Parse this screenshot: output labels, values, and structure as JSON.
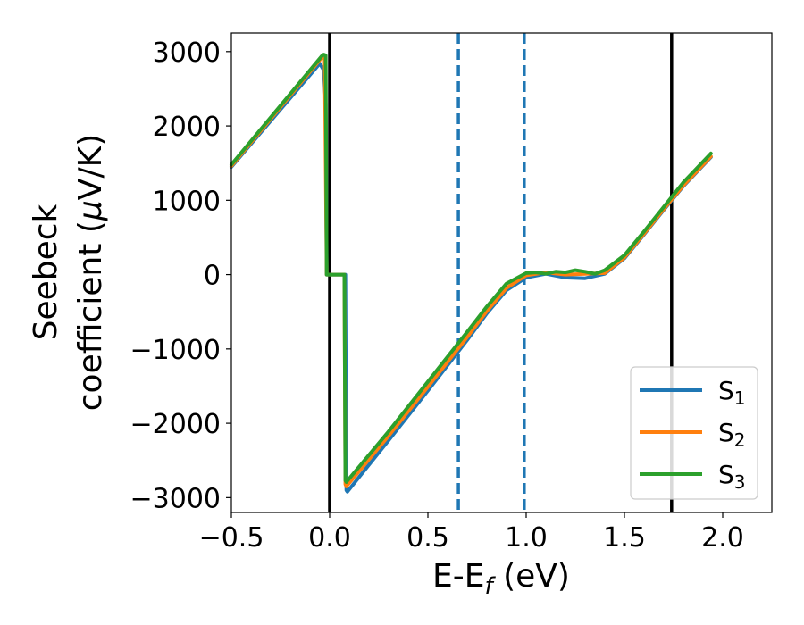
{
  "chart_data": {
    "type": "line",
    "xlabel": "E-E",
    "xlabel_sub": "f",
    "xlabel_unit": " (eV)",
    "ylabel_line1": "Seebeck",
    "ylabel_line2": "coefficient  (",
    "ylabel_mu": "μ",
    "ylabel_unit": "V/K)",
    "xlim": [
      -0.5,
      2.25
    ],
    "ylim": [
      -3200,
      3250
    ],
    "x_ticks": [
      -0.5,
      0.0,
      0.5,
      1.0,
      1.5,
      2.0
    ],
    "x_tick_labels": [
      "−0.5",
      "0.0",
      "0.5",
      "1.0",
      "1.5",
      "2.0"
    ],
    "y_ticks": [
      -3000,
      -2000,
      -1000,
      0,
      1000,
      2000,
      3000
    ],
    "y_tick_labels": [
      "−3000",
      "−2000",
      "−1000",
      "0",
      "1000",
      "2000",
      "3000"
    ],
    "grid": false,
    "legend_position": "bottom-right",
    "vertical_lines": [
      {
        "x": 0.0,
        "style": "solid",
        "color": "#000000"
      },
      {
        "x": 1.74,
        "style": "solid",
        "color": "#000000"
      },
      {
        "x": 0.655,
        "style": "dashed",
        "color": "#1f77b4"
      },
      {
        "x": 0.99,
        "style": "dashed",
        "color": "#1f77b4"
      }
    ],
    "series": [
      {
        "name": "S",
        "sub": "1",
        "color": "#1f77b4",
        "x": [
          -0.5,
          -0.05,
          -0.03,
          -0.02,
          -0.015,
          0.07,
          0.08,
          0.085,
          0.09,
          0.3,
          0.5,
          0.7,
          0.8,
          0.9,
          1.0,
          1.1,
          1.2,
          1.3,
          1.4,
          1.5,
          1.6,
          1.7,
          1.8,
          1.94
        ],
        "y": [
          1450,
          2840,
          2750,
          2300,
          0,
          0,
          0,
          -2900,
          -2920,
          -2230,
          -1560,
          -880,
          -520,
          -210,
          -40,
          10,
          -40,
          -50,
          10,
          220,
          540,
          870,
          1190,
          1580
        ]
      },
      {
        "name": "S",
        "sub": "2",
        "color": "#ff7f0e",
        "x": [
          -0.5,
          -0.04,
          -0.025,
          -0.015,
          0.075,
          0.08,
          0.085,
          0.3,
          0.5,
          0.7,
          0.8,
          0.9,
          1.0,
          1.1,
          1.2,
          1.3,
          1.4,
          1.5,
          1.6,
          1.7,
          1.8,
          1.94
        ],
        "y": [
          1460,
          2920,
          2900,
          0,
          0,
          -2820,
          -2850,
          -2170,
          -1510,
          -840,
          -490,
          -180,
          -10,
          30,
          0,
          10,
          20,
          230,
          550,
          880,
          1200,
          1590
        ]
      },
      {
        "name": "S",
        "sub": "3",
        "color": "#2ca02c",
        "x": [
          -0.5,
          -0.04,
          -0.03,
          -0.02,
          -0.015,
          0.07,
          0.075,
          0.08,
          0.085,
          0.3,
          0.5,
          0.7,
          0.8,
          0.9,
          1.0,
          1.05,
          1.1,
          1.15,
          1.2,
          1.25,
          1.3,
          1.35,
          1.4,
          1.5,
          1.6,
          1.7,
          1.8,
          1.94
        ],
        "y": [
          1480,
          2940,
          2960,
          2950,
          0,
          0,
          0,
          -2770,
          -2790,
          -2110,
          -1440,
          -770,
          -430,
          -120,
          20,
          30,
          10,
          40,
          30,
          60,
          40,
          10,
          60,
          260,
          580,
          910,
          1240,
          1630
        ]
      }
    ]
  }
}
